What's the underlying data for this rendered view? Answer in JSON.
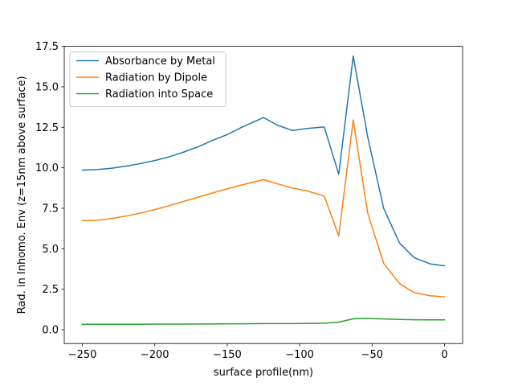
{
  "chart_data": {
    "type": "line",
    "xlabel": "surface profile(nm)",
    "ylabel": "Rad. in Inhomo. Env (z=15nm above surface)",
    "xlim": [
      -262.5,
      12.5
    ],
    "ylim": [
      -0.85,
      17.5
    ],
    "xticks": [
      -250,
      -200,
      -150,
      -100,
      -50,
      0
    ],
    "xtick_labels": [
      "−250",
      "−200",
      "−150",
      "−100",
      "−50",
      "0"
    ],
    "yticks": [
      0.0,
      2.5,
      5.0,
      7.5,
      10.0,
      12.5,
      15.0,
      17.5
    ],
    "ytick_labels": [
      "0.0",
      "2.5",
      "5.0",
      "7.5",
      "10.0",
      "12.5",
      "15.0",
      "17.5"
    ],
    "grid": false,
    "legend_position": "upper-left",
    "x": [
      -250,
      -240,
      -230,
      -220,
      -210,
      -200,
      -190,
      -180,
      -170,
      -160,
      -150,
      -140,
      -125,
      -115,
      -105,
      -95,
      -83,
      -73,
      -63,
      -53,
      -42,
      -31,
      -21,
      -10,
      0
    ],
    "series": [
      {
        "name": "Absorbance by Metal",
        "color": "#1f77b4",
        "values": [
          9.86,
          9.89,
          9.97,
          10.1,
          10.26,
          10.45,
          10.68,
          10.97,
          11.3,
          11.7,
          12.05,
          12.5,
          13.1,
          12.62,
          12.3,
          12.43,
          12.52,
          9.6,
          16.9,
          11.9,
          7.5,
          5.35,
          4.45,
          4.07,
          3.95
        ]
      },
      {
        "name": "Radiation by Dipole",
        "color": "#ff7f0e",
        "values": [
          6.74,
          6.76,
          6.87,
          7.02,
          7.2,
          7.42,
          7.66,
          7.93,
          8.19,
          8.45,
          8.7,
          8.94,
          9.27,
          9.0,
          8.75,
          8.58,
          8.25,
          5.8,
          12.95,
          7.2,
          4.1,
          2.85,
          2.3,
          2.1,
          2.03
        ]
      },
      {
        "name": "Radiation into Space",
        "color": "#2ca02c",
        "values": [
          0.34,
          0.34,
          0.34,
          0.34,
          0.34,
          0.35,
          0.35,
          0.35,
          0.36,
          0.36,
          0.37,
          0.37,
          0.38,
          0.38,
          0.38,
          0.39,
          0.41,
          0.47,
          0.68,
          0.7,
          0.67,
          0.64,
          0.62,
          0.61,
          0.61
        ]
      }
    ]
  }
}
